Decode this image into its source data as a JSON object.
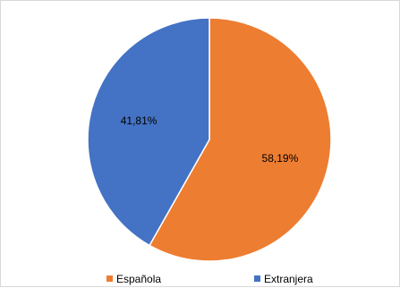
{
  "chart_data": {
    "type": "pie",
    "categories": [
      "Española",
      "Extranjera"
    ],
    "values": [
      58.19,
      41.81
    ],
    "data_labels": [
      "58,19%",
      "41,81%"
    ],
    "colors": [
      "#ED7D31",
      "#4472C4"
    ],
    "title": "",
    "legend_position": "bottom",
    "start_angle_deg": 0,
    "direction": "clockwise"
  }
}
